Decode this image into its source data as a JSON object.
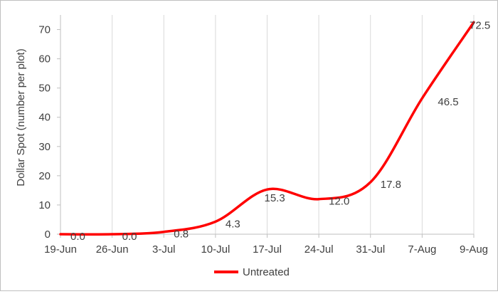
{
  "chart_data": {
    "type": "line",
    "categories": [
      "19-Jun",
      "26-Jun",
      "3-Jul",
      "10-Jul",
      "17-Jul",
      "24-Jul",
      "31-Jul",
      "7-Aug",
      "9-Aug"
    ],
    "series": [
      {
        "name": "Untreated",
        "values": [
          0.0,
          0.0,
          0.8,
          4.3,
          15.3,
          12.0,
          17.8,
          46.5,
          72.5
        ],
        "labels": [
          "0.0",
          "0.0",
          "0.8",
          "4.3",
          "15.3",
          "12.0",
          "17.8",
          "46.5",
          "72.5"
        ],
        "color": "#ff0000"
      }
    ],
    "ylabel": "Dollar Spot (number per plot)",
    "xlabel": "",
    "ylim": [
      0,
      75
    ],
    "yticks": [
      0,
      10,
      20,
      30,
      40,
      50,
      60,
      70
    ],
    "grid": "vertical",
    "legend": "bottom",
    "smooth": true
  }
}
